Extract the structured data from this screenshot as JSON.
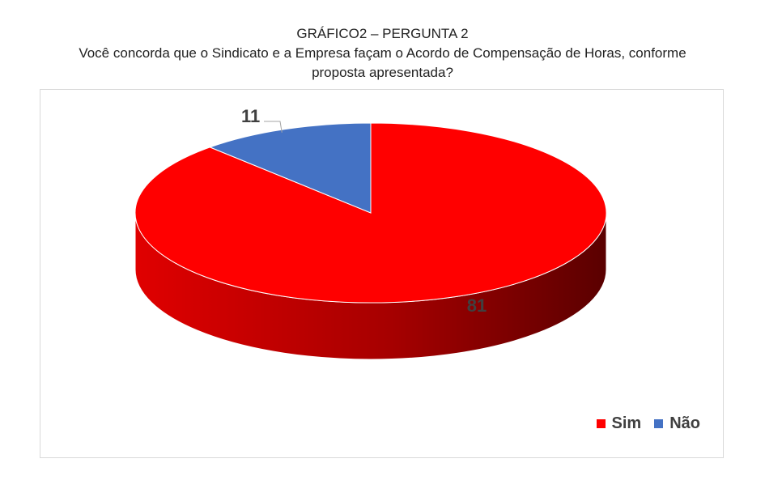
{
  "chart_data": {
    "type": "pie",
    "title": "GRÁFICO2 – PERGUNTA 2",
    "subtitle": [
      "Você concorda que o Sindicato e a Empresa façam o Acordo de Compensação de Horas, conforme",
      "proposta apresentada?"
    ],
    "categories": [
      "Sim",
      "Não"
    ],
    "values": [
      81,
      11
    ],
    "colors": [
      "#ff0000",
      "#4472c4"
    ],
    "data_labels": [
      "81",
      "11"
    ],
    "legend_position": "bottom-right",
    "style": "3d"
  }
}
